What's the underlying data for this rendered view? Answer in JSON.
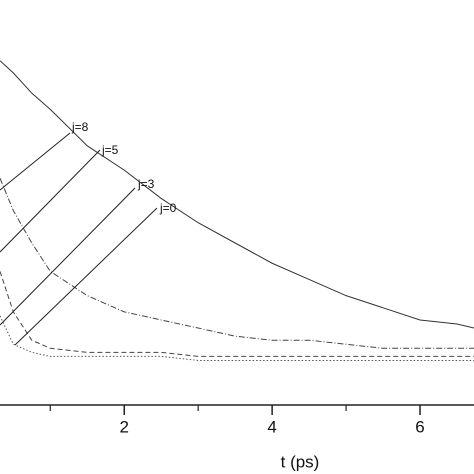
{
  "chart_data": {
    "type": "line",
    "x_label": "t (ps)",
    "x": [
      0.32,
      0.5,
      0.75,
      1,
      1.5,
      2,
      2.5,
      3,
      3.5,
      4,
      4.5,
      5,
      5.5,
      6,
      6.5,
      6.73
    ],
    "series": [
      {
        "color": "#333333",
        "dash": "solid",
        "values": [
          0.85,
          0.82,
          0.77,
          0.73,
          0.64,
          0.58,
          0.51,
          0.45,
          0.4,
          0.35,
          0.31,
          0.27,
          0.24,
          0.21,
          0.2,
          0.19
        ]
      },
      {
        "color": "#444444",
        "dash": "dashdot",
        "values": [
          0.56,
          0.48,
          0.4,
          0.33,
          0.27,
          0.23,
          0.21,
          0.19,
          0.17,
          0.16,
          0.16,
          0.15,
          0.14,
          0.14,
          0.14,
          0.14
        ]
      },
      {
        "color": "#444444",
        "dash": "dashed",
        "values": [
          0.33,
          0.23,
          0.16,
          0.14,
          0.13,
          0.13,
          0.13,
          0.12,
          0.12,
          0.12,
          0.12,
          0.12,
          0.12,
          0.12,
          0.12,
          0.12
        ]
      },
      {
        "color": "#555555",
        "dash": "dotted",
        "values": [
          0.22,
          0.15,
          0.13,
          0.12,
          0.12,
          0.12,
          0.12,
          0.11,
          0.11,
          0.11,
          0.11,
          0.11,
          0.11,
          0.11,
          0.11,
          0.11
        ]
      }
    ],
    "annotations": [
      "j=8",
      "j=5",
      "j=3",
      "j=0"
    ],
    "xlim": [
      0.32,
      6.73
    ],
    "xticks": [
      2,
      4,
      6
    ],
    "xminor_ticks": [
      1,
      3,
      5
    ],
    "ylim": [
      0,
      1
    ],
    "grid": false
  }
}
